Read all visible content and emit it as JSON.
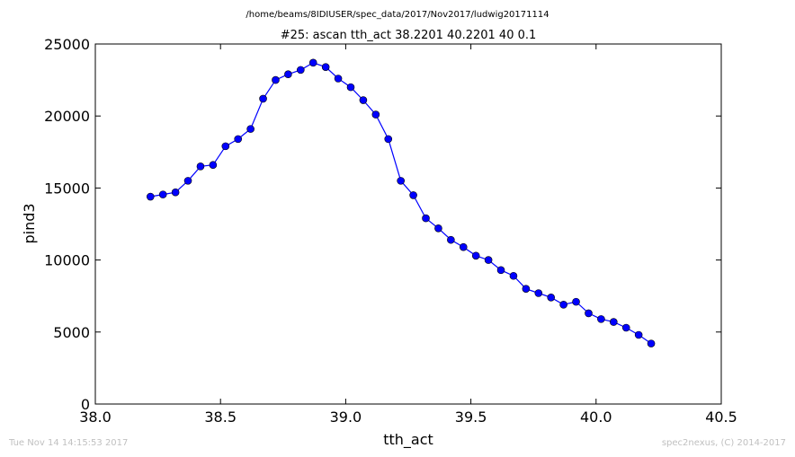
{
  "chart_data": {
    "type": "line",
    "suptitle": "/home/beams/8IDIUSER/spec_data/2017/Nov2017/ludwig20171114",
    "title": "#25: ascan  tth_act 38.2201 40.2201  40 0.1",
    "xlabel": "tth_act",
    "ylabel": "pind3",
    "xlim": [
      38.0,
      40.5
    ],
    "ylim": [
      0,
      25000
    ],
    "xticks": [
      38.0,
      38.5,
      39.0,
      39.5,
      40.0,
      40.5
    ],
    "xtick_labels": [
      "38.0",
      "38.5",
      "39.0",
      "39.5",
      "40.0",
      "40.5"
    ],
    "yticks": [
      0,
      5000,
      10000,
      15000,
      20000,
      25000
    ],
    "ytick_labels": [
      "0",
      "5000",
      "10000",
      "15000",
      "20000",
      "25000"
    ],
    "grid": false,
    "color": "#0000ff",
    "marker": "circle",
    "x": [
      38.2201,
      38.2701,
      38.3201,
      38.3701,
      38.4201,
      38.4701,
      38.5201,
      38.5701,
      38.6201,
      38.6701,
      38.7201,
      38.7701,
      38.8201,
      38.8701,
      38.9201,
      38.9701,
      39.0201,
      39.0701,
      39.1201,
      39.1701,
      39.2201,
      39.2701,
      39.3201,
      39.3701,
      39.4201,
      39.4701,
      39.5201,
      39.5701,
      39.6201,
      39.6701,
      39.7201,
      39.7701,
      39.8201,
      39.8701,
      39.9201,
      39.9701,
      40.0201,
      40.0701,
      40.1201,
      40.1701,
      40.2201
    ],
    "y": [
      14400,
      14550,
      14700,
      15500,
      16500,
      16600,
      17900,
      18400,
      19100,
      21200,
      22500,
      22900,
      23200,
      23700,
      23400,
      22600,
      22000,
      21100,
      20100,
      18400,
      15500,
      14500,
      12900,
      12200,
      11400,
      10900,
      10300,
      10000,
      9300,
      8900,
      8000,
      7700,
      7400,
      6900,
      7100,
      6300,
      5900,
      5700,
      5300,
      4800,
      4200
    ]
  },
  "footer": {
    "timestamp": "Tue Nov 14 14:15:53 2017",
    "credit": "spec2nexus, (C) 2014-2017"
  }
}
